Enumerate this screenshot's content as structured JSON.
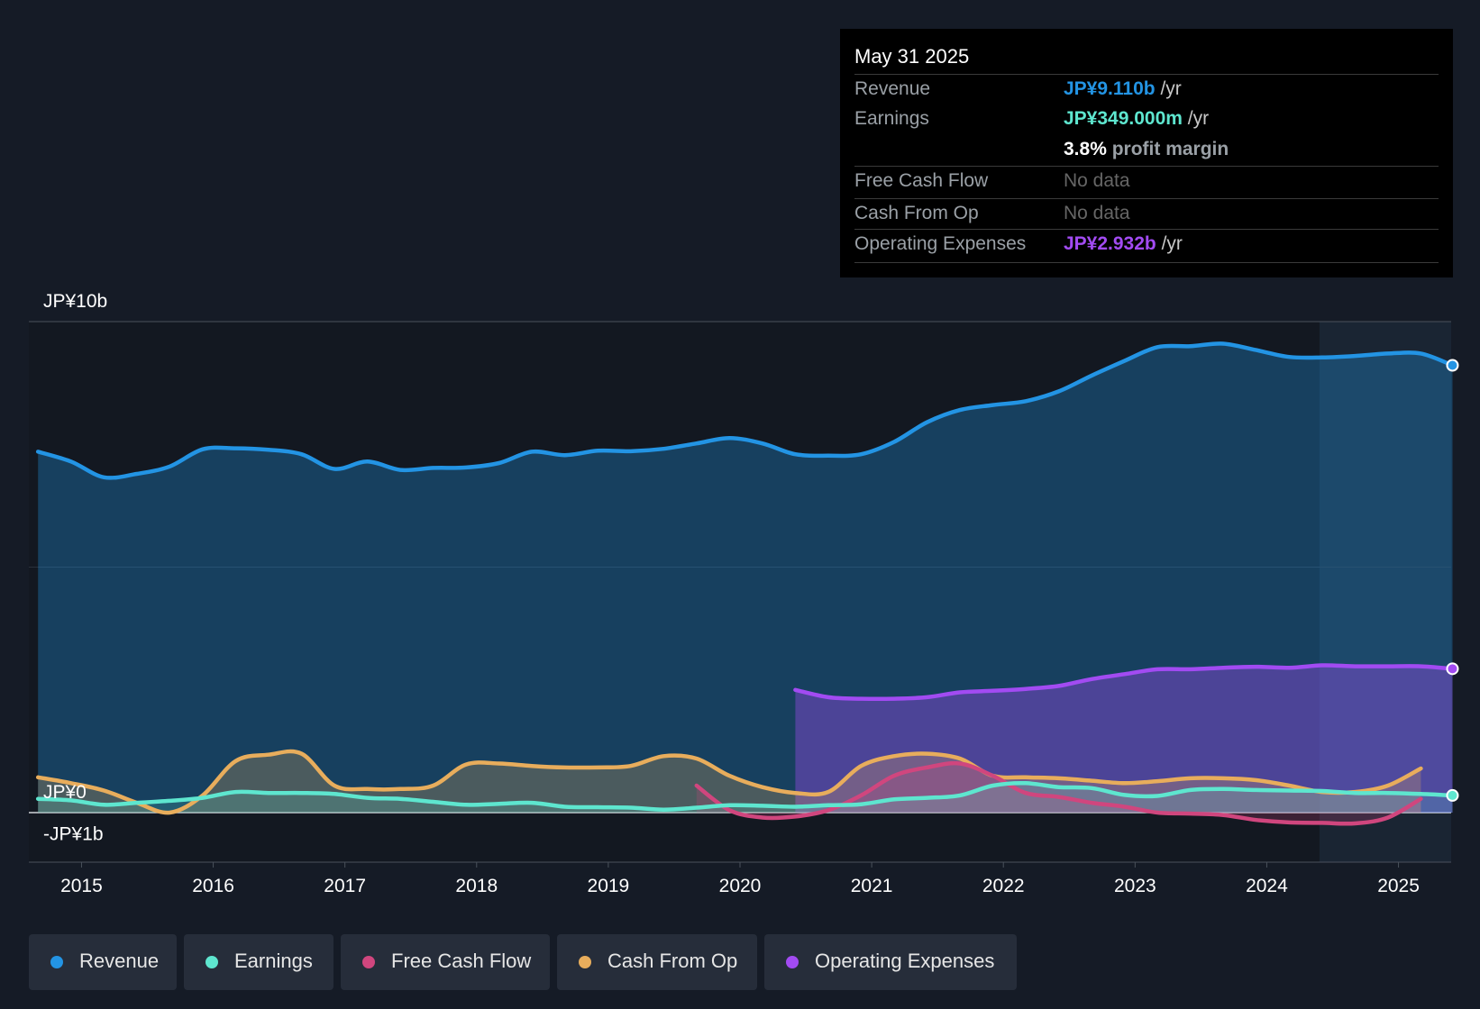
{
  "colors": {
    "revenue": "#2394e4",
    "earnings": "#5ee6cf",
    "fcf": "#d0467e",
    "cfo": "#e8ad5c",
    "opex": "#a24bf2",
    "background": "#151b26"
  },
  "tooltip": {
    "date": "May 31 2025",
    "revenue_label": "Revenue",
    "revenue_value": "JP¥9.110b",
    "revenue_unit": "/yr",
    "earnings_label": "Earnings",
    "earnings_value": "JP¥349.000m",
    "earnings_unit": "/yr",
    "margin_value": "3.8%",
    "margin_label": "profit margin",
    "fcf_label": "Free Cash Flow",
    "fcf_value": "No data",
    "cfo_label": "Cash From Op",
    "cfo_value": "No data",
    "opex_label": "Operating Expenses",
    "opex_value": "JP¥2.932b",
    "opex_unit": "/yr"
  },
  "legend": [
    {
      "label": "Revenue",
      "color": "#2394e4"
    },
    {
      "label": "Earnings",
      "color": "#5ee6cf"
    },
    {
      "label": "Free Cash Flow",
      "color": "#d0467e"
    },
    {
      "label": "Cash From Op",
      "color": "#e8ad5c"
    },
    {
      "label": "Operating Expenses",
      "color": "#a24bf2"
    }
  ],
  "chart_data": {
    "type": "line",
    "title": "",
    "xlabel": "",
    "ylabel": "",
    "ylim": [
      -1,
      10
    ],
    "y_tick_labels": [
      {
        "value": 10,
        "label": "JP¥10b"
      },
      {
        "value": 0,
        "label": "JP¥0"
      },
      {
        "value": -1,
        "label": "-JP¥1b"
      }
    ],
    "xlim": [
      2014.6,
      2025.4
    ],
    "x_ticks": [
      2015,
      2016,
      2017,
      2018,
      2019,
      2020,
      2021,
      2022,
      2023,
      2024,
      2025
    ],
    "x_tick_labels": [
      "2015",
      "2016",
      "2017",
      "2018",
      "2019",
      "2020",
      "2021",
      "2022",
      "2023",
      "2024",
      "2025"
    ],
    "forecast_start": 2024.4,
    "series": [
      {
        "name": "Revenue",
        "key": "revenue",
        "x": [
          2014.67,
          2014.92,
          2015.17,
          2015.42,
          2015.67,
          2015.92,
          2016.17,
          2016.42,
          2016.67,
          2016.92,
          2017.17,
          2017.42,
          2017.67,
          2017.92,
          2018.17,
          2018.42,
          2018.67,
          2018.92,
          2019.17,
          2019.42,
          2019.67,
          2019.92,
          2020.17,
          2020.42,
          2020.67,
          2020.92,
          2021.17,
          2021.42,
          2021.67,
          2021.92,
          2022.17,
          2022.42,
          2022.67,
          2022.92,
          2023.17,
          2023.42,
          2023.67,
          2023.92,
          2024.17,
          2024.42,
          2024.67,
          2024.92,
          2025.17,
          2025.41
        ],
        "values": [
          7.35,
          7.15,
          6.83,
          6.9,
          7.05,
          7.4,
          7.42,
          7.39,
          7.3,
          7.0,
          7.15,
          6.98,
          7.02,
          7.03,
          7.12,
          7.35,
          7.28,
          7.37,
          7.36,
          7.41,
          7.52,
          7.63,
          7.52,
          7.3,
          7.27,
          7.3,
          7.55,
          7.95,
          8.2,
          8.3,
          8.38,
          8.58,
          8.9,
          9.2,
          9.48,
          9.5,
          9.55,
          9.42,
          9.28,
          9.27,
          9.3,
          9.35,
          9.35,
          9.11
        ]
      },
      {
        "name": "Earnings",
        "key": "earnings",
        "x": [
          2014.67,
          2014.92,
          2015.17,
          2015.42,
          2015.67,
          2015.92,
          2016.17,
          2016.42,
          2016.67,
          2016.92,
          2017.17,
          2017.42,
          2017.67,
          2017.92,
          2018.17,
          2018.42,
          2018.67,
          2018.92,
          2019.17,
          2019.42,
          2019.67,
          2019.92,
          2020.17,
          2020.42,
          2020.67,
          2020.92,
          2021.17,
          2021.42,
          2021.67,
          2021.92,
          2022.17,
          2022.42,
          2022.67,
          2022.92,
          2023.17,
          2023.42,
          2023.67,
          2023.92,
          2024.17,
          2024.42,
          2024.67,
          2024.92,
          2025.17,
          2025.41
        ],
        "values": [
          0.28,
          0.25,
          0.16,
          0.2,
          0.24,
          0.3,
          0.42,
          0.4,
          0.4,
          0.38,
          0.3,
          0.28,
          0.22,
          0.16,
          0.18,
          0.2,
          0.12,
          0.11,
          0.1,
          0.06,
          0.1,
          0.15,
          0.14,
          0.12,
          0.15,
          0.17,
          0.27,
          0.3,
          0.35,
          0.55,
          0.6,
          0.52,
          0.5,
          0.36,
          0.34,
          0.46,
          0.48,
          0.46,
          0.45,
          0.44,
          0.4,
          0.4,
          0.38,
          0.35
        ]
      },
      {
        "name": "Free Cash Flow",
        "key": "fcf",
        "x": [
          2019.67,
          2019.92,
          2020.17,
          2020.42,
          2020.67,
          2020.92,
          2021.17,
          2021.42,
          2021.67,
          2021.92,
          2022.17,
          2022.42,
          2022.67,
          2022.92,
          2023.17,
          2023.42,
          2023.67,
          2023.92,
          2024.17,
          2024.42,
          2024.67,
          2024.92,
          2025.17
        ],
        "values": [
          0.55,
          0.05,
          -0.1,
          -0.08,
          0.05,
          0.35,
          0.75,
          0.92,
          1.0,
          0.75,
          0.4,
          0.32,
          0.2,
          0.12,
          0.0,
          -0.02,
          -0.05,
          -0.15,
          -0.2,
          -0.21,
          -0.22,
          -0.1,
          0.28
        ]
      },
      {
        "name": "Cash From Op",
        "key": "cfo",
        "x": [
          2014.67,
          2014.92,
          2015.17,
          2015.42,
          2015.67,
          2015.92,
          2016.17,
          2016.42,
          2016.67,
          2016.92,
          2017.17,
          2017.42,
          2017.67,
          2017.92,
          2018.17,
          2018.42,
          2018.67,
          2018.92,
          2019.17,
          2019.42,
          2019.67,
          2019.92,
          2020.17,
          2020.42,
          2020.67,
          2020.92,
          2021.17,
          2021.42,
          2021.67,
          2021.92,
          2022.17,
          2022.42,
          2022.67,
          2022.92,
          2023.17,
          2023.42,
          2023.67,
          2023.92,
          2024.17,
          2024.42,
          2024.67,
          2024.92,
          2025.17
        ],
        "values": [
          0.72,
          0.6,
          0.45,
          0.2,
          0.0,
          0.35,
          1.05,
          1.18,
          1.2,
          0.55,
          0.48,
          0.48,
          0.55,
          0.98,
          1.0,
          0.95,
          0.92,
          0.92,
          0.95,
          1.15,
          1.1,
          0.75,
          0.52,
          0.4,
          0.42,
          0.95,
          1.15,
          1.2,
          1.1,
          0.75,
          0.72,
          0.7,
          0.65,
          0.6,
          0.64,
          0.7,
          0.7,
          0.66,
          0.55,
          0.42,
          0.42,
          0.55,
          0.9
        ]
      },
      {
        "name": "Operating Expenses",
        "key": "opex",
        "x": [
          2020.42,
          2020.67,
          2020.92,
          2021.17,
          2021.42,
          2021.67,
          2021.92,
          2022.17,
          2022.42,
          2022.67,
          2022.92,
          2023.17,
          2023.42,
          2023.67,
          2023.92,
          2024.17,
          2024.42,
          2024.67,
          2024.92,
          2025.17,
          2025.41
        ],
        "values": [
          2.5,
          2.35,
          2.32,
          2.32,
          2.35,
          2.45,
          2.48,
          2.52,
          2.58,
          2.72,
          2.82,
          2.92,
          2.92,
          2.95,
          2.97,
          2.95,
          3.0,
          2.98,
          2.98,
          2.98,
          2.93
        ]
      }
    ]
  }
}
